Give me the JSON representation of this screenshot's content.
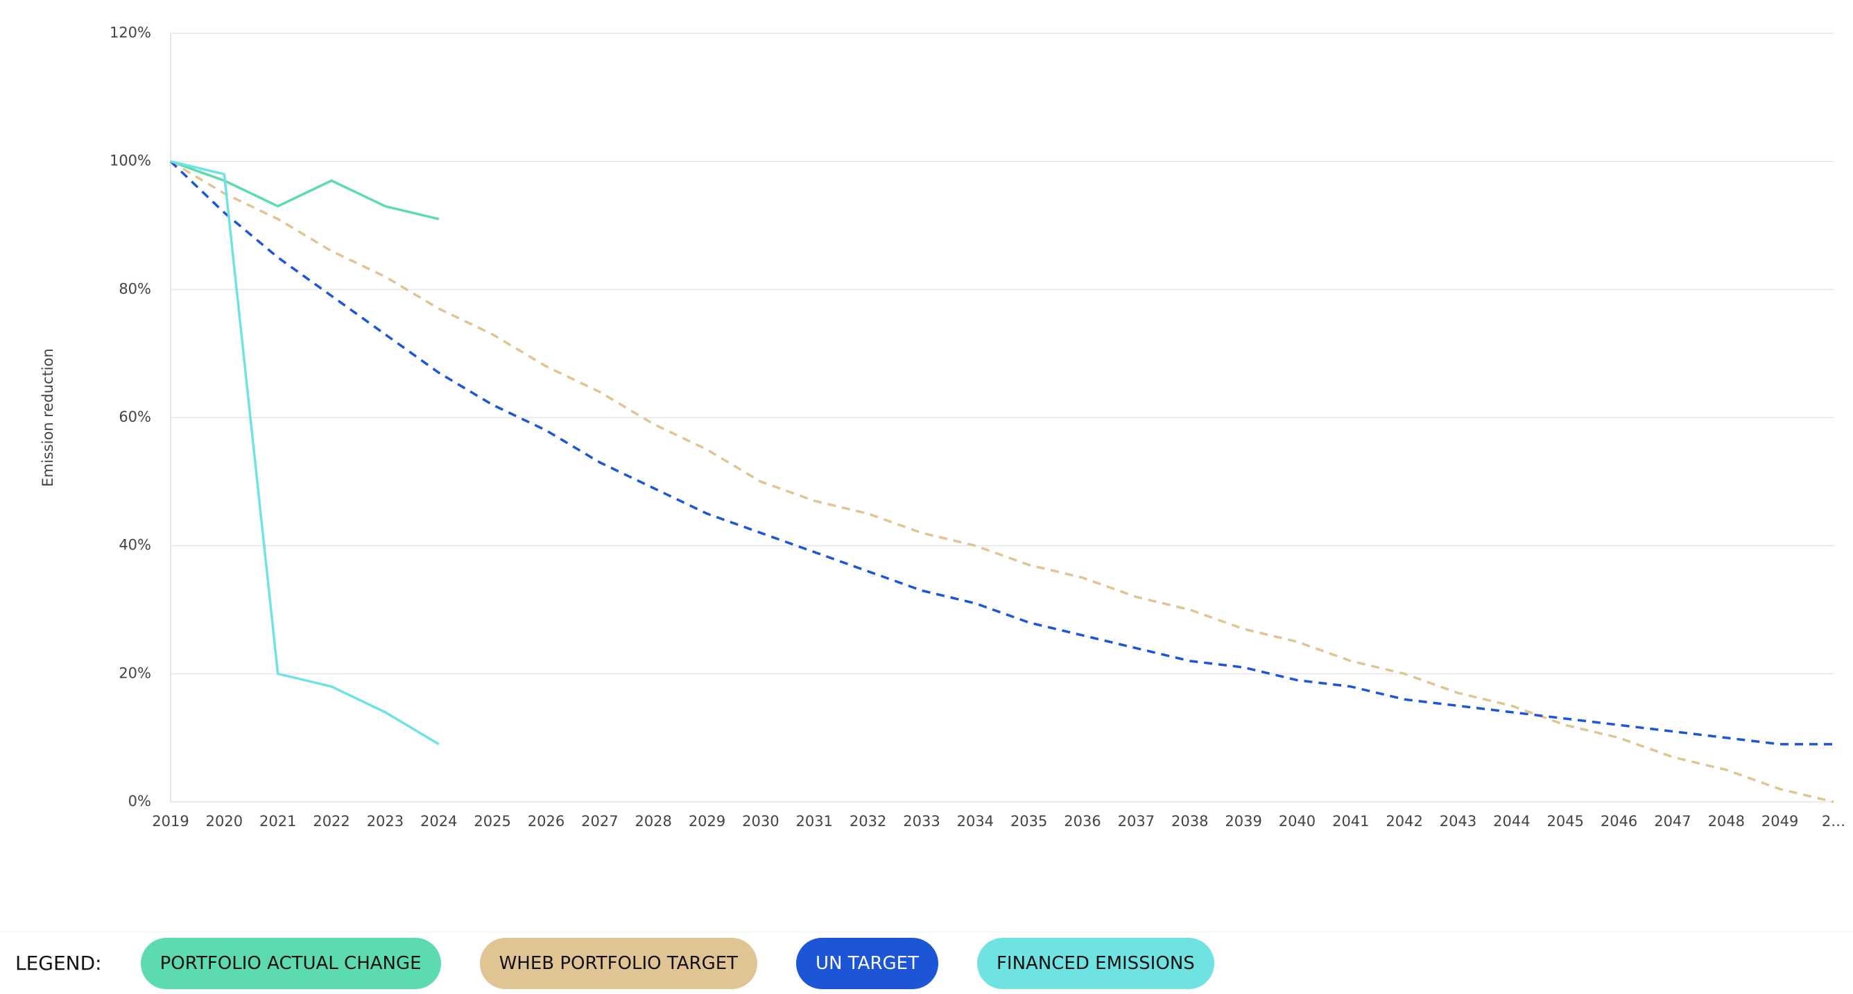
{
  "chart_data": {
    "type": "line",
    "y_label": "Emission reduction",
    "legend_label": "LEGEND:",
    "categories": [
      "2019",
      "2020",
      "2021",
      "2022",
      "2023",
      "2024",
      "2025",
      "2026",
      "2027",
      "2028",
      "2029",
      "2030",
      "2031",
      "2032",
      "2033",
      "2034",
      "2035",
      "2036",
      "2037",
      "2038",
      "2039",
      "2040",
      "2041",
      "2042",
      "2043",
      "2044",
      "2045",
      "2046",
      "2047",
      "2048",
      "2049",
      "2…"
    ],
    "ylim": [
      0,
      120
    ],
    "yticks": [
      {
        "value": 0,
        "label": "0%"
      },
      {
        "value": 20,
        "label": "20%"
      },
      {
        "value": 40,
        "label": "40%"
      },
      {
        "value": 60,
        "label": "60%"
      },
      {
        "value": 80,
        "label": "80%"
      },
      {
        "value": 100,
        "label": "100%"
      },
      {
        "value": 120,
        "label": "120%"
      }
    ],
    "grid": true,
    "legend": "bottom-left",
    "series": [
      {
        "name": "PORTFOLIO ACTUAL CHANGE",
        "color": "#5ddbb0",
        "dashed": false,
        "values": [
          100,
          97,
          93,
          97,
          93,
          91,
          null,
          null,
          null,
          null,
          null,
          null,
          null,
          null,
          null,
          null,
          null,
          null,
          null,
          null,
          null,
          null,
          null,
          null,
          null,
          null,
          null,
          null,
          null,
          null,
          null,
          null
        ]
      },
      {
        "name": "WHEB PORTFOLIO TARGET",
        "color": "#e0c494",
        "dashed": true,
        "values": [
          100,
          95,
          91,
          86,
          82,
          77,
          73,
          68,
          64,
          59,
          55,
          50,
          47,
          45,
          42,
          40,
          37,
          35,
          32,
          30,
          27,
          25,
          22,
          20,
          17,
          15,
          12,
          10,
          7,
          5,
          2,
          0
        ]
      },
      {
        "name": "UN TARGET",
        "color": "#1c55d6",
        "dashed": true,
        "values": [
          100,
          92,
          85,
          79,
          73,
          67,
          62,
          58,
          53,
          49,
          45,
          42,
          39,
          36,
          33,
          31,
          28,
          26,
          24,
          22,
          21,
          19,
          18,
          16,
          15,
          14,
          13,
          12,
          11,
          10,
          9,
          9
        ]
      },
      {
        "name": "FINANCED EMISSIONS",
        "color": "#6fe2e2",
        "dashed": false,
        "values": [
          100,
          98,
          20,
          18,
          14,
          9,
          null,
          null,
          null,
          null,
          null,
          null,
          null,
          null,
          null,
          null,
          null,
          null,
          null,
          null,
          null,
          null,
          null,
          null,
          null,
          null,
          null,
          null,
          null,
          null,
          null,
          null
        ]
      }
    ]
  }
}
